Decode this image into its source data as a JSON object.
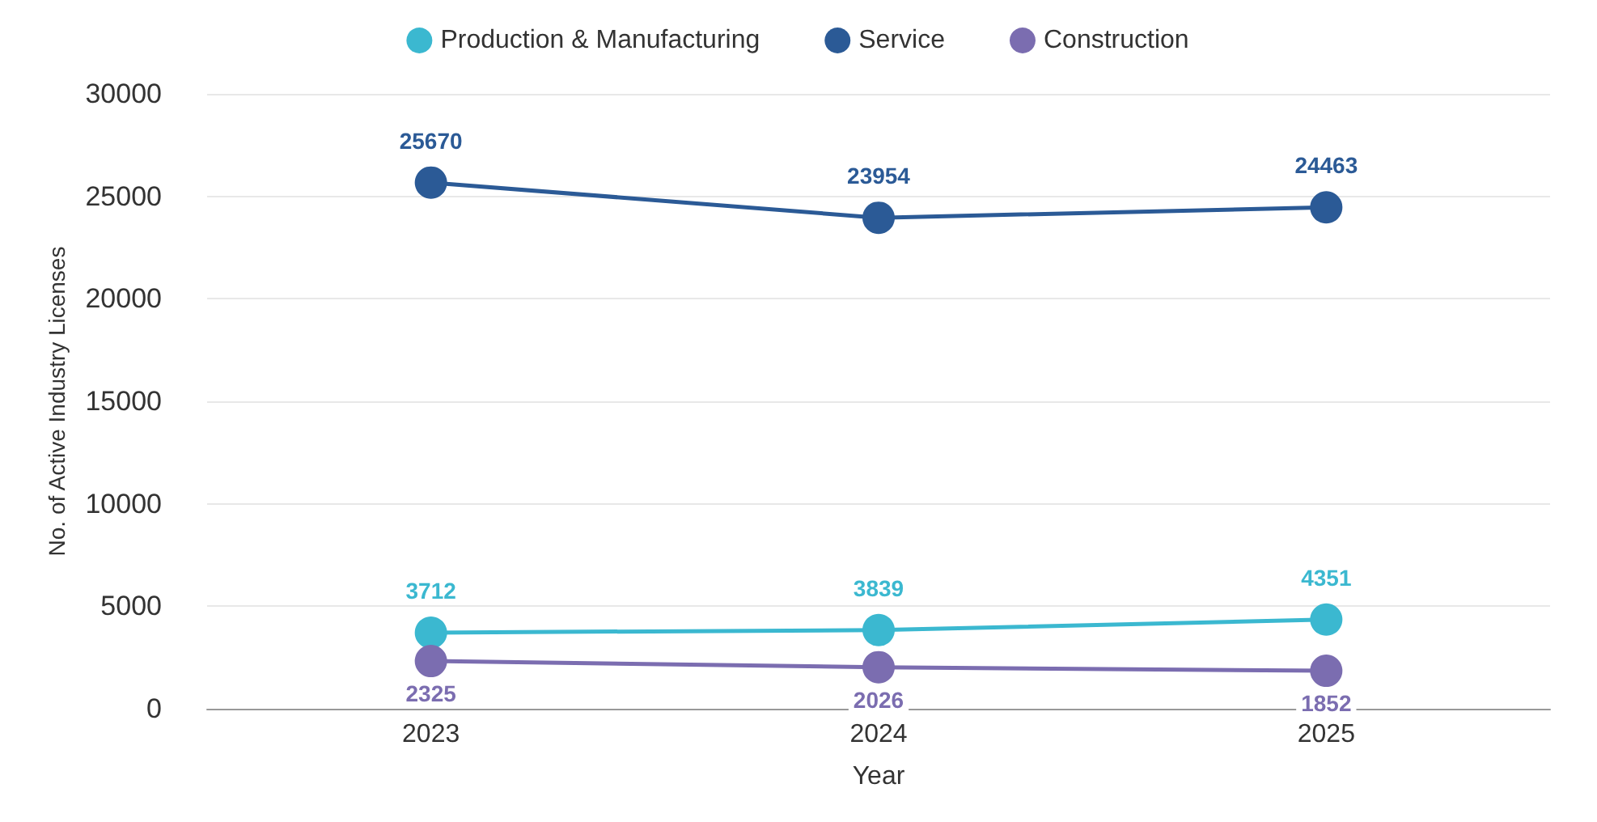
{
  "chart_data": {
    "type": "line",
    "xlabel": "Year",
    "ylabel": "No. of Active Industry Licenses",
    "categories": [
      "2023",
      "2024",
      "2025"
    ],
    "series": [
      {
        "name": "Production & Manufacturing",
        "color": "#3bb8d0",
        "values": [
          3712,
          3839,
          4351
        ]
      },
      {
        "name": "Service",
        "color": "#2b5a96",
        "values": [
          25670,
          23954,
          24463
        ]
      },
      {
        "name": "Construction",
        "color": "#7b6db0",
        "values": [
          2325,
          2026,
          1852
        ]
      }
    ],
    "ylim": [
      0,
      30000
    ],
    "yticks": [
      0,
      5000,
      10000,
      15000,
      20000,
      25000,
      30000
    ],
    "grid": "y",
    "legend": "top",
    "marker": "circle",
    "line_style": "solid",
    "data_labels": true
  }
}
